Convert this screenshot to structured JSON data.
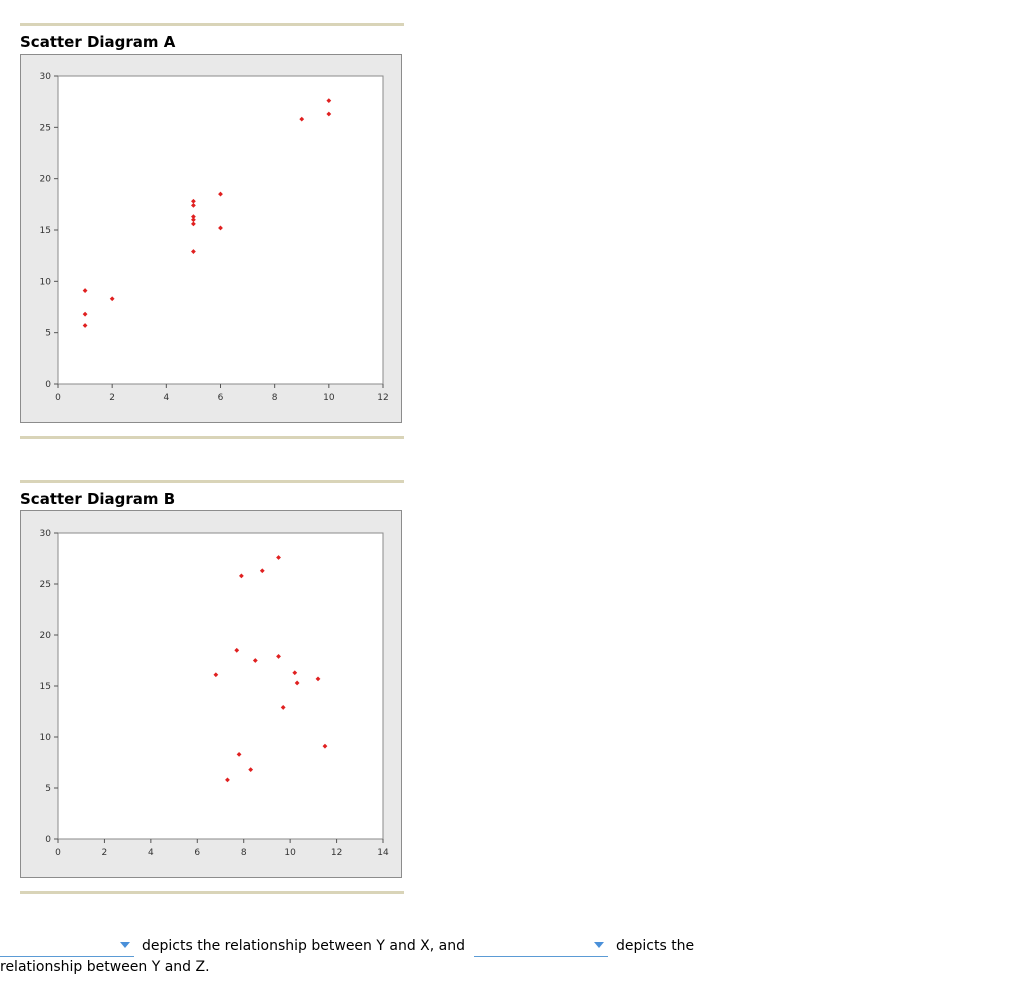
{
  "chart_data": [
    {
      "type": "scatter",
      "title": "Scatter Diagram A",
      "xlabel": "",
      "ylabel": "",
      "xlim": [
        0,
        12
      ],
      "ylim": [
        0,
        30
      ],
      "xticks": [
        0,
        2,
        4,
        6,
        8,
        10,
        12
      ],
      "yticks": [
        0,
        5,
        10,
        15,
        20,
        25,
        30
      ],
      "grid": false,
      "marker_color": "#e02020",
      "points": [
        [
          1,
          9.1
        ],
        [
          1,
          6.8
        ],
        [
          1,
          5.7
        ],
        [
          2,
          8.3
        ],
        [
          5,
          17.8
        ],
        [
          5,
          17.4
        ],
        [
          5,
          16.3
        ],
        [
          5,
          16.0
        ],
        [
          5,
          15.6
        ],
        [
          5,
          12.9
        ],
        [
          6,
          18.5
        ],
        [
          6,
          15.2
        ],
        [
          9,
          25.8
        ],
        [
          10,
          27.6
        ],
        [
          10,
          26.3
        ]
      ]
    },
    {
      "type": "scatter",
      "title": "Scatter Diagram B",
      "xlabel": "",
      "ylabel": "",
      "xlim": [
        0,
        14
      ],
      "ylim": [
        0,
        30
      ],
      "xticks": [
        0,
        2,
        4,
        6,
        8,
        10,
        12,
        14
      ],
      "yticks": [
        0,
        5,
        10,
        15,
        20,
        25,
        30
      ],
      "grid": false,
      "marker_color": "#e02020",
      "points": [
        [
          7.9,
          25.8
        ],
        [
          8.8,
          26.3
        ],
        [
          9.5,
          27.6
        ],
        [
          7.7,
          18.5
        ],
        [
          8.5,
          17.5
        ],
        [
          9.5,
          17.9
        ],
        [
          6.8,
          16.1
        ],
        [
          10.2,
          16.3
        ],
        [
          10.3,
          15.3
        ],
        [
          11.2,
          15.7
        ],
        [
          9.7,
          12.9
        ],
        [
          11.5,
          9.1
        ],
        [
          7.8,
          8.3
        ],
        [
          8.3,
          6.8
        ],
        [
          7.3,
          5.8
        ]
      ]
    }
  ],
  "question": {
    "part1": "depicts the relationship between Y and X, and",
    "part2": "depicts the",
    "part3": "relationship between Y and Z."
  },
  "dropdowns": {
    "first_value": "",
    "second_value": ""
  }
}
